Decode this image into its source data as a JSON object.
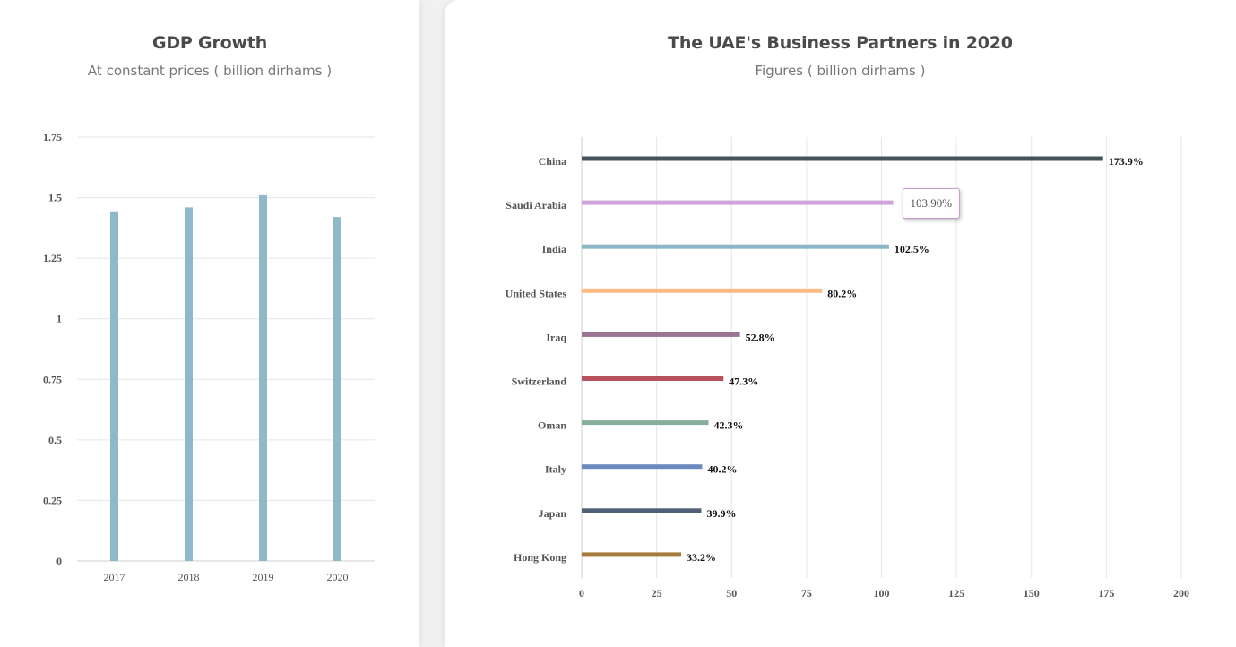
{
  "gdp_card": {
    "title": "GDP Growth",
    "subtitle": "At constant prices ( billion dirhams )"
  },
  "partners_card": {
    "title": "The UAE's Business Partners in 2020",
    "subtitle": "Figures ( billion dirhams )",
    "tooltip": "103.90%"
  },
  "chart_data": [
    {
      "type": "bar",
      "title": "GDP Growth",
      "subtitle": "At constant prices ( billion dirhams )",
      "categories": [
        "2017",
        "2018",
        "2019",
        "2020"
      ],
      "values": [
        1.44,
        1.46,
        1.51,
        1.42
      ],
      "ylim": [
        0,
        1.75
      ],
      "yticks": [
        "0",
        "0.25",
        "0.5",
        "0.75",
        "1",
        "1.25",
        "1.5",
        "1.75"
      ],
      "color": "#8fb8c9",
      "grid": true
    },
    {
      "type": "bar",
      "orientation": "horizontal",
      "title": "The UAE's Business Partners in 2020",
      "subtitle": "Figures ( billion dirhams )",
      "categories": [
        "China",
        "Saudi Arabia",
        "India",
        "United States",
        "Iraq",
        "Switzerland",
        "Oman",
        "Italy",
        "Japan",
        "Hong Kong"
      ],
      "values": [
        173.9,
        103.9,
        102.5,
        80.2,
        52.8,
        47.3,
        42.3,
        40.2,
        39.9,
        33.2
      ],
      "data_labels": [
        "173.9%",
        "",
        "102.5%",
        "80.2%",
        "52.8%",
        "47.3%",
        "42.3%",
        "40.2%",
        "39.9%",
        "33.2%"
      ],
      "colors": [
        "#46525a",
        "#d1a3dc",
        "#8ab6c8",
        "#fcbc84",
        "#9a7392",
        "#b8505d",
        "#86af9a",
        "#6a8ac0",
        "#506078",
        "#a57c3c"
      ],
      "xlim": [
        0,
        200
      ],
      "xticks": [
        "0",
        "25",
        "50",
        "75",
        "100",
        "125",
        "150",
        "175",
        "200"
      ],
      "grid": true
    }
  ]
}
